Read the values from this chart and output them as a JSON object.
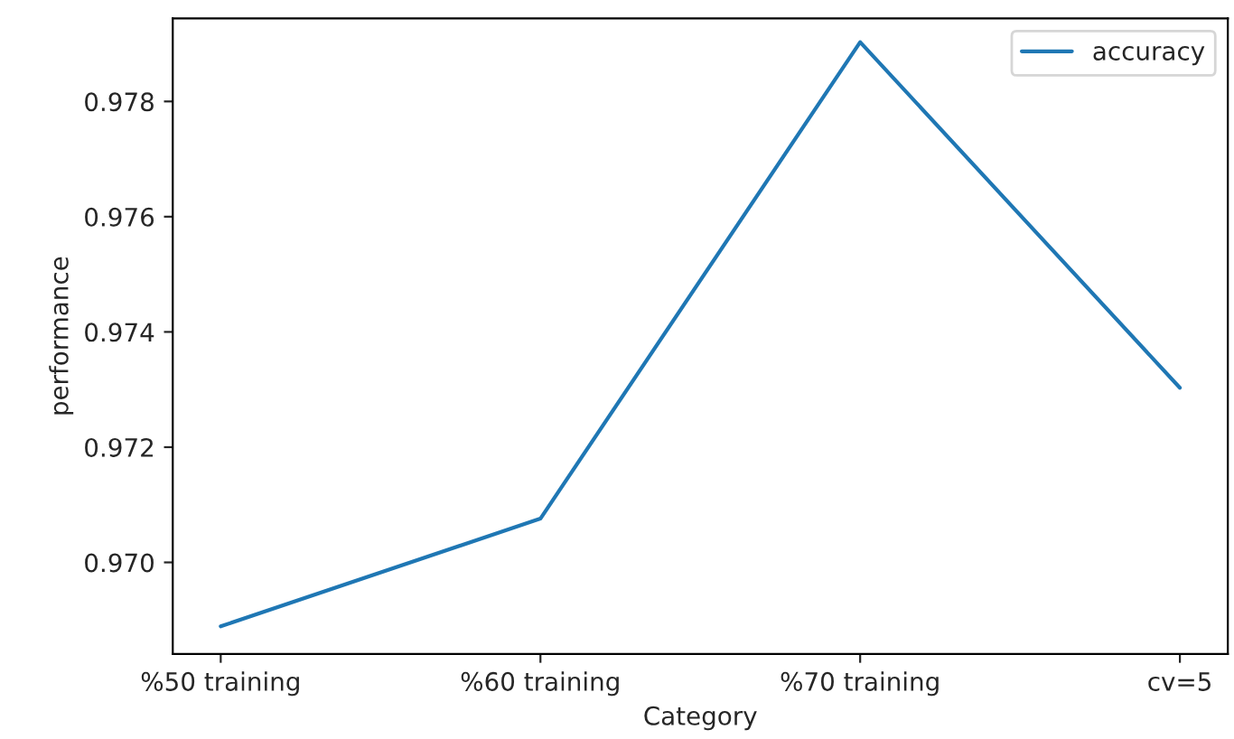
{
  "chart_data": {
    "type": "line",
    "xlabel": "Category",
    "ylabel": "performance",
    "categories": [
      "%50 training",
      "%60 training",
      "%70 training",
      "cv=5"
    ],
    "series": [
      {
        "name": "accuracy",
        "color": "#1f77b4",
        "values": [
          0.96889,
          0.97076,
          0.97903,
          0.97303
        ]
      }
    ],
    "ylim": [
      0.96841,
      0.97944
    ],
    "yticks": [
      {
        "value": 0.97,
        "label": "0.970"
      },
      {
        "value": 0.972,
        "label": "0.972"
      },
      {
        "value": 0.974,
        "label": "0.974"
      },
      {
        "value": 0.976,
        "label": "0.976"
      },
      {
        "value": 0.978,
        "label": "0.978"
      }
    ],
    "grid": false,
    "legend": "top right",
    "marker": "none",
    "line_style": "solid"
  }
}
